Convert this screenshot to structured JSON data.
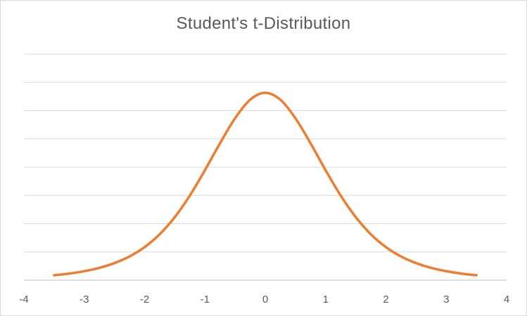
{
  "chart_data": {
    "type": "line",
    "title": "Student's t-Distribution",
    "xlabel": "",
    "ylabel": "",
    "xlim": [
      -4,
      4
    ],
    "ylim": [
      0,
      0.4
    ],
    "x_ticks": [
      "-4",
      "-3",
      "-2",
      "-1",
      "0",
      "1",
      "2",
      "3",
      "4"
    ],
    "y_gridlines": 8,
    "y_axis_labels_shown": false,
    "grid": true,
    "legend": "none",
    "line_color": "#ED7D31",
    "gridline_color": "#d9d9d9",
    "series": [
      {
        "x": [
          -3.5,
          -3.25,
          -3,
          -2.75,
          -2.5,
          -2.25,
          -2,
          -1.75,
          -1.5,
          -1.25,
          -1,
          -0.75,
          -0.5,
          -0.25,
          0,
          0.25,
          0.5,
          0.75,
          1,
          1.25,
          1.5,
          1.75,
          2,
          2.25,
          2.5,
          2.75,
          3,
          3.25,
          3.5
        ],
        "values": [
          0.0087,
          0.0117,
          0.0159,
          0.0218,
          0.0302,
          0.042,
          0.0585,
          0.0812,
          0.1115,
          0.1497,
          0.1946,
          0.2423,
          0.2865,
          0.3193,
          0.3315,
          0.3193,
          0.2865,
          0.2423,
          0.1946,
          0.1497,
          0.1115,
          0.0812,
          0.0585,
          0.042,
          0.0302,
          0.0218,
          0.0159,
          0.0117,
          0.0087
        ]
      }
    ]
  }
}
